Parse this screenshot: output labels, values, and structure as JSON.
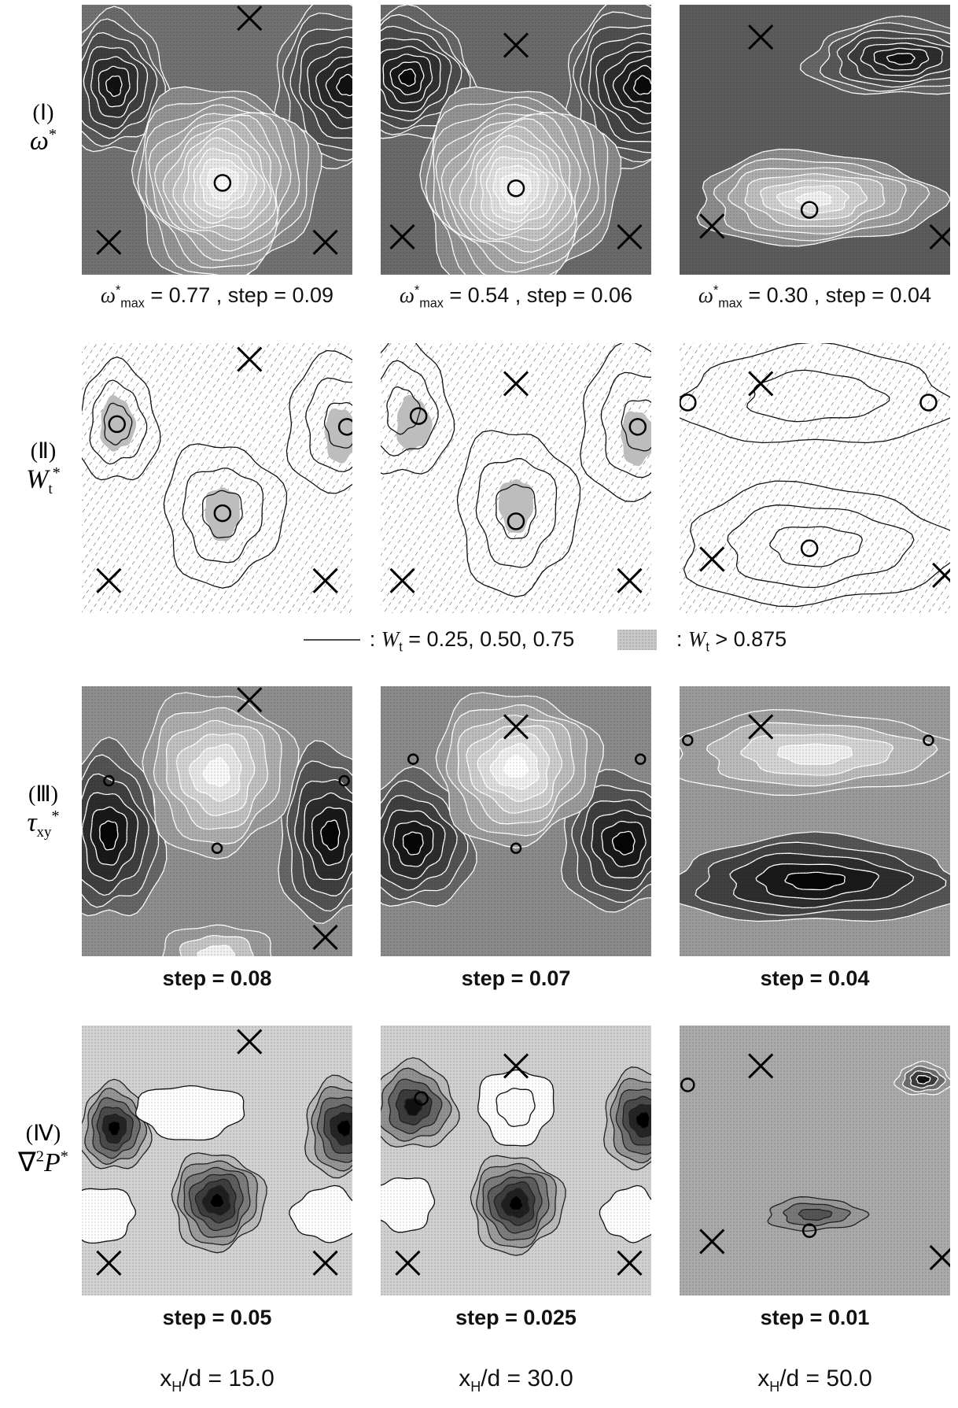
{
  "rows": [
    {
      "roman": "(Ⅰ)",
      "label": [
        {
          "italic": "ω"
        },
        {
          "sup": "*"
        }
      ],
      "captions": [
        [
          {
            "italic": "ω"
          },
          {
            "sup": "*"
          },
          {
            "sub": "max"
          },
          {
            "text": " = 0.77 , step = 0.09"
          }
        ],
        [
          {
            "italic": "ω"
          },
          {
            "sup": "*"
          },
          {
            "sub": "max"
          },
          {
            "text": " = 0.54 , step = 0.06"
          }
        ],
        [
          {
            "italic": "ω"
          },
          {
            "sup": "*"
          },
          {
            "sub": "max"
          },
          {
            "text": " = 0.30 , step = 0.04"
          }
        ]
      ]
    },
    {
      "roman": "(Ⅱ)",
      "label": [
        {
          "italic": "W"
        },
        {
          "sub": "t"
        },
        {
          "sup": "*"
        }
      ],
      "captions": []
    },
    {
      "roman": "(Ⅲ)",
      "label": [
        {
          "italic": "τ"
        },
        {
          "sub": "xy"
        },
        {
          "sup": "*"
        }
      ],
      "captions": [
        [
          {
            "text": "step = 0.08"
          }
        ],
        [
          {
            "text": "step = 0.07"
          }
        ],
        [
          {
            "text": "step = 0.04"
          }
        ]
      ]
    },
    {
      "roman": "(Ⅳ)",
      "label": [
        {
          "text": "∇"
        },
        {
          "sup": "2"
        },
        {
          "italic": "P"
        },
        {
          "sup": "*"
        }
      ],
      "captions": [
        [
          {
            "text": "step = 0.05"
          }
        ],
        [
          {
            "text": "step = 0.025"
          }
        ],
        [
          {
            "text": "step = 0.01"
          }
        ]
      ]
    }
  ],
  "legend": {
    "line": [
      {
        "text": ": "
      },
      {
        "italic": "W"
      },
      {
        "sub": "t"
      },
      {
        "text": " = 0.25, 0.50, 0.75"
      }
    ],
    "shade": [
      {
        "text": ": "
      },
      {
        "italic": "W"
      },
      {
        "sub": "t"
      },
      {
        "text": " > 0.875"
      }
    ]
  },
  "columns": [
    [
      {
        "text": "x"
      },
      {
        "sub": "H"
      },
      {
        "text": "/d = 15.0"
      }
    ],
    [
      {
        "text": "x"
      },
      {
        "sub": "H"
      },
      {
        "text": "/d = 30.0"
      }
    ],
    [
      {
        "text": "x"
      },
      {
        "sub": "H"
      },
      {
        "text": "/d = 50.0"
      }
    ]
  ]
}
